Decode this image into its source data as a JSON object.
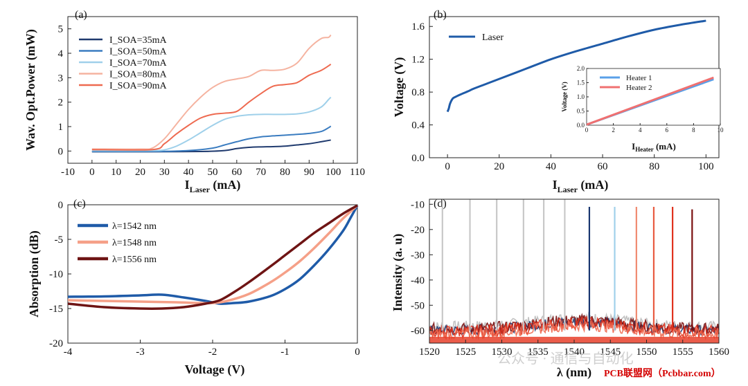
{
  "chart_data": [
    {
      "panel": "(a)",
      "type": "line",
      "xlabel": "I",
      "xlabel_sub": "Laser",
      "xlabel_unit": " (mA)",
      "ylabel": "Wav. Opt.Power (mW)",
      "xlim": [
        -10,
        110
      ],
      "ylim": [
        -0.5,
        5.5
      ],
      "xticks": [
        -10,
        0,
        10,
        20,
        30,
        40,
        50,
        60,
        70,
        80,
        90,
        100,
        110
      ],
      "yticks": [
        0,
        1,
        2,
        3,
        4,
        5
      ],
      "legend": "top-left",
      "series": [
        {
          "name": "I_SOA=35mA",
          "color": "#1f3a6e",
          "x": [
            0,
            25,
            45,
            55,
            60,
            65,
            70,
            75,
            80,
            85,
            90,
            95,
            99
          ],
          "y": [
            -0.03,
            -0.03,
            -0.02,
            0.02,
            0.1,
            0.15,
            0.17,
            0.18,
            0.2,
            0.25,
            0.3,
            0.38,
            0.45
          ]
        },
        {
          "name": "I_SOA=50mA",
          "color": "#3a7cc0",
          "x": [
            0,
            25,
            40,
            50,
            55,
            60,
            65,
            70,
            75,
            80,
            85,
            90,
            95,
            98,
            99
          ],
          "y": [
            -0.02,
            -0.02,
            0.02,
            0.12,
            0.25,
            0.38,
            0.5,
            0.58,
            0.62,
            0.65,
            0.68,
            0.72,
            0.8,
            0.95,
            1.02
          ]
        },
        {
          "name": "I_SOA=70mA",
          "color": "#9fd0ea",
          "x": [
            0,
            25,
            30,
            35,
            40,
            45,
            50,
            55,
            60,
            65,
            70,
            75,
            80,
            85,
            90,
            95,
            98,
            99
          ],
          "y": [
            0.02,
            0.02,
            0.05,
            0.2,
            0.45,
            0.75,
            1.05,
            1.3,
            1.42,
            1.48,
            1.5,
            1.5,
            1.5,
            1.52,
            1.6,
            1.8,
            2.1,
            2.2
          ]
        },
        {
          "name": "I_SOA=80mA",
          "color": "#f5b3a0",
          "x": [
            0,
            20,
            25,
            30,
            35,
            40,
            45,
            50,
            55,
            60,
            65,
            70,
            75,
            80,
            85,
            90,
            95,
            98,
            99
          ],
          "y": [
            0.08,
            0.08,
            0.12,
            0.5,
            1.1,
            1.7,
            2.2,
            2.6,
            2.85,
            2.95,
            3.05,
            3.3,
            3.3,
            3.35,
            3.6,
            4.2,
            4.6,
            4.65,
            4.75
          ]
        },
        {
          "name": "I_SOA=90mA",
          "color": "#ee6a50",
          "x": [
            0,
            25,
            30,
            35,
            40,
            45,
            50,
            55,
            60,
            65,
            70,
            75,
            80,
            85,
            90,
            95,
            99
          ],
          "y": [
            0.06,
            0.06,
            0.3,
            0.7,
            1.05,
            1.35,
            1.5,
            1.55,
            1.62,
            2.0,
            2.35,
            2.65,
            2.72,
            2.8,
            3.1,
            3.3,
            3.55
          ]
        }
      ]
    },
    {
      "panel": "(b)",
      "type": "line",
      "xlabel": "I",
      "xlabel_sub": "Laser",
      "xlabel_unit": " (mA)",
      "ylabel": "Voltage (V)",
      "xlim": [
        -7,
        105
      ],
      "ylim": [
        0.0,
        1.72
      ],
      "xticks": [
        0,
        20,
        40,
        60,
        80,
        100
      ],
      "yticks": [
        0.0,
        0.4,
        0.8,
        1.2,
        1.6
      ],
      "ytick_labels": [
        "0.0",
        "0.4",
        "0.8",
        "1.2",
        "1.6"
      ],
      "legend": "top-left",
      "series": [
        {
          "name": "Laser",
          "color": "#1f5ba8",
          "x": [
            0,
            0.5,
            1,
            2,
            3,
            5,
            8,
            10,
            15,
            20,
            30,
            40,
            50,
            60,
            70,
            80,
            90,
            100
          ],
          "y": [
            0.56,
            0.6,
            0.66,
            0.72,
            0.74,
            0.77,
            0.81,
            0.84,
            0.9,
            0.96,
            1.08,
            1.2,
            1.3,
            1.39,
            1.48,
            1.56,
            1.62,
            1.67
          ]
        }
      ],
      "inset": {
        "xlabel": "I",
        "xlabel_sub": "Heater",
        "xlabel_unit": " (mA)",
        "ylabel": "Voltage (V)",
        "xlim": [
          0,
          10
        ],
        "ylim": [
          0,
          2.0
        ],
        "xticks": [
          0,
          2,
          4,
          6,
          8,
          10
        ],
        "yticks": [
          0.0,
          0.5,
          1.0,
          1.5,
          2.0
        ],
        "ytick_labels": [
          "0.0",
          "0.5",
          "1.0",
          "1.5",
          "2.0"
        ],
        "series": [
          {
            "name": "Heater 1",
            "color": "#5aa0e8",
            "x": [
              0,
              9.5
            ],
            "y": [
              0.02,
              1.62
            ]
          },
          {
            "name": "Heater 2",
            "color": "#f07070",
            "x": [
              0,
              9.5
            ],
            "y": [
              0.02,
              1.68
            ]
          }
        ]
      }
    },
    {
      "panel": "(c)",
      "type": "line",
      "xlabel": "Voltage (V)",
      "ylabel": "Absorption (dB)",
      "xlim": [
        -4,
        0
      ],
      "ylim": [
        -20,
        0
      ],
      "xticks": [
        -4,
        -3,
        -2,
        -1,
        0
      ],
      "yticks": [
        -20,
        -15,
        -10,
        -5,
        0
      ],
      "legend": "top-left",
      "series": [
        {
          "name": "λ=1542 nm",
          "color": "#1f5ba8",
          "x": [
            -4,
            -3.5,
            -3,
            -2.7,
            -2.4,
            -2.1,
            -1.9,
            -1.7,
            -1.5,
            -1.2,
            -1.0,
            -0.8,
            -0.6,
            -0.4,
            -0.2,
            -0.1,
            0
          ],
          "y": [
            -13.3,
            -13.25,
            -13.1,
            -13.0,
            -13.4,
            -13.9,
            -14.3,
            -14.2,
            -14.0,
            -13.2,
            -12.2,
            -10.8,
            -8.8,
            -6.5,
            -3.8,
            -2.0,
            -0.1
          ]
        },
        {
          "name": "λ=1548 nm",
          "color": "#f5a088",
          "x": [
            -4,
            -3.5,
            -3,
            -2.5,
            -2.2,
            -2.0,
            -1.8,
            -1.5,
            -1.2,
            -1.0,
            -0.8,
            -0.6,
            -0.4,
            -0.2,
            0
          ],
          "y": [
            -13.8,
            -13.9,
            -14.0,
            -14.1,
            -14.2,
            -14.2,
            -13.9,
            -12.9,
            -11.2,
            -9.8,
            -8.2,
            -6.3,
            -4.2,
            -2.0,
            -0.1
          ]
        },
        {
          "name": "λ=1556 nm",
          "color": "#6e1414",
          "x": [
            -4,
            -3.5,
            -3,
            -2.7,
            -2.4,
            -2.1,
            -1.9,
            -1.7,
            -1.5,
            -1.2,
            -1.0,
            -0.8,
            -0.6,
            -0.4,
            -0.2,
            0
          ],
          "y": [
            -14.3,
            -14.8,
            -15.0,
            -15.0,
            -14.8,
            -14.3,
            -13.8,
            -12.6,
            -11.2,
            -8.9,
            -7.3,
            -5.7,
            -4.1,
            -2.7,
            -1.3,
            -0.1
          ]
        }
      ]
    },
    {
      "panel": "(d)",
      "type": "line",
      "xlabel": "λ (nm)",
      "ylabel": "Intensity (a. u)",
      "xlim": [
        1520,
        1560
      ],
      "ylim": [
        -65,
        -8
      ],
      "xticks": [
        1520,
        1525,
        1530,
        1535,
        1540,
        1545,
        1550,
        1555,
        1560
      ],
      "yticks": [
        -10,
        -20,
        -30,
        -40,
        -50,
        -60
      ],
      "noise_floor": -60,
      "peaks": [
        {
          "x": 1521.8,
          "y": -8,
          "color": "#c8c8c8"
        },
        {
          "x": 1525.6,
          "y": -8,
          "color": "#c8c8c8"
        },
        {
          "x": 1529.3,
          "y": -8,
          "color": "#c8c8c8"
        },
        {
          "x": 1533.0,
          "y": -8,
          "color": "#c8c8c8"
        },
        {
          "x": 1535.8,
          "y": -8,
          "color": "#c8c8c8"
        },
        {
          "x": 1538.7,
          "y": -8,
          "color": "#c8c8c8"
        },
        {
          "x": 1542.1,
          "y": -11,
          "color": "#1a3670"
        },
        {
          "x": 1545.6,
          "y": -11,
          "color": "#9fd0ea"
        },
        {
          "x": 1548.6,
          "y": -11,
          "color": "#f08a70"
        },
        {
          "x": 1551.0,
          "y": -11,
          "color": "#e85a40"
        },
        {
          "x": 1553.6,
          "y": -11,
          "color": "#e0301c"
        },
        {
          "x": 1556.3,
          "y": -12,
          "color": "#7a0f0f"
        }
      ]
    }
  ],
  "watermark": {
    "text": "PCB联盟网（Pcbbar.com）",
    "faded": "公众号 · 通信与自动化"
  }
}
